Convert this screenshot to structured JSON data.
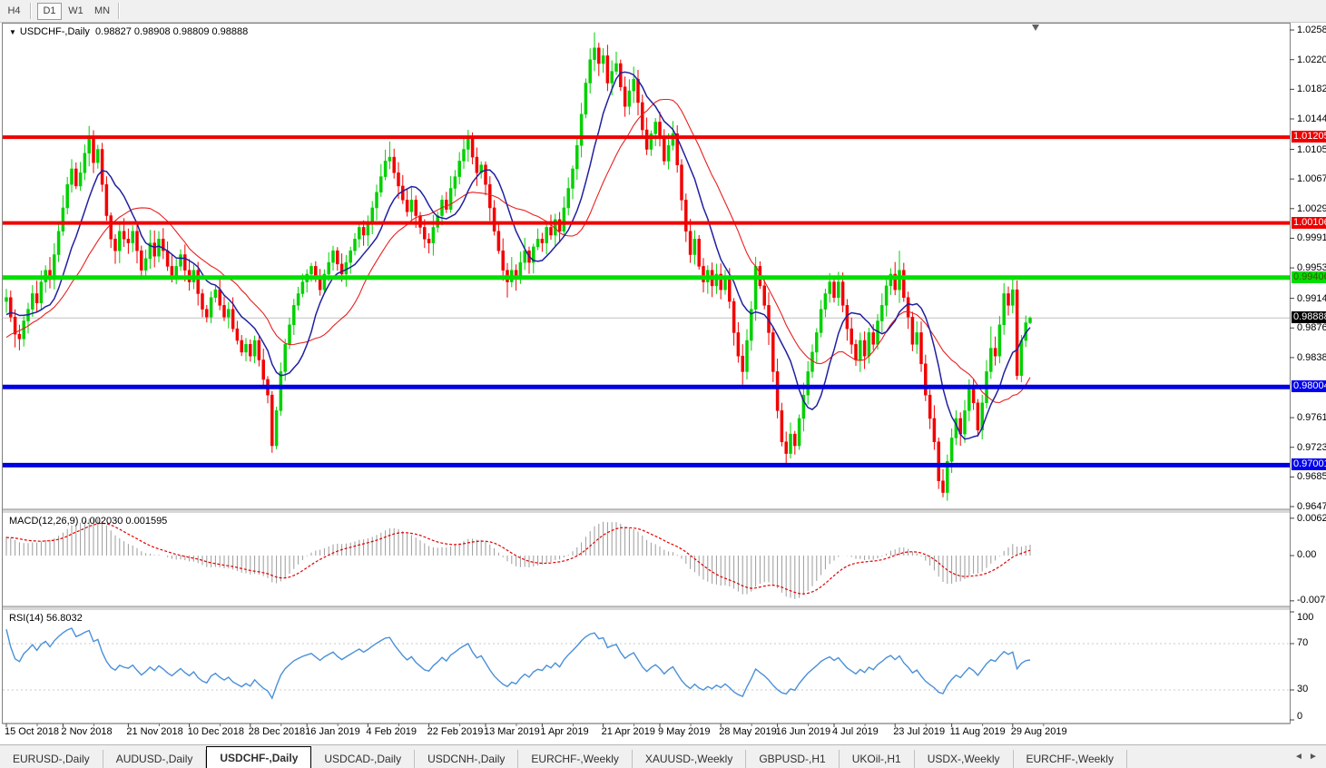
{
  "toolbar": {
    "timeframes": [
      {
        "label": "H4",
        "active": false
      },
      {
        "label": "D1",
        "active": true
      },
      {
        "label": "W1",
        "active": false
      },
      {
        "label": "MN",
        "active": false
      }
    ]
  },
  "chart": {
    "title": "USDCHF-,Daily",
    "ohlc_text": "0.98827 0.98908 0.98809 0.98888",
    "expand_icon": "▼"
  },
  "chart_data": {
    "type": "candlestick",
    "symbol": "USDCHF",
    "timeframe": "Daily",
    "last_candle": {
      "open": 0.98827,
      "high": 0.98908,
      "low": 0.98809,
      "close": 0.98888
    },
    "current_price": 0.98888,
    "price_ylim": [
      0.96447,
      1.02662
    ],
    "price_axis_ticks": [
      "1.02580",
      "1.02200",
      "1.01820",
      "1.01440",
      "1.01050",
      "1.00670",
      "1.00290",
      "0.99910",
      "0.99530",
      "0.99140",
      "0.98760",
      "0.98380",
      "0.97610",
      "0.97230",
      "0.96850",
      "0.96470"
    ],
    "price_badges": [
      {
        "label": "1.01205",
        "price": 1.01205,
        "bg": "#ee0000",
        "fg": "#ffffff"
      },
      {
        "label": "1.00106",
        "price": 1.00106,
        "bg": "#ee0000",
        "fg": "#ffffff"
      },
      {
        "label": "0.99406",
        "price": 0.99406,
        "bg": "#00dd00",
        "fg": "#3c5200"
      },
      {
        "label": "0.98888",
        "price": 0.98888,
        "bg": "#000000",
        "fg": "#ffffff"
      },
      {
        "label": "0.98004",
        "price": 0.98004,
        "bg": "#0000ee",
        "fg": "#ffffff"
      },
      {
        "label": "0.97001",
        "price": 0.97001,
        "bg": "#0000ee",
        "fg": "#ffffff"
      }
    ],
    "h_lines": [
      {
        "price": 1.01205,
        "color": "#ee0000",
        "width": 4
      },
      {
        "price": 1.00106,
        "color": "#ee0000",
        "width": 4
      },
      {
        "price": 0.99406,
        "color": "#00e000",
        "width": 5
      },
      {
        "price": 0.98004,
        "color": "#0000e0",
        "width": 5
      },
      {
        "price": 0.97001,
        "color": "#0000e0",
        "width": 5
      }
    ],
    "x_axis_labels": [
      {
        "i": 0,
        "label": "15 Oct 2018"
      },
      {
        "i": 13,
        "label": "2 Nov 2018"
      },
      {
        "i": 28,
        "label": "21 Nov 2018"
      },
      {
        "i": 42,
        "label": "10 Dec 2018"
      },
      {
        "i": 56,
        "label": "28 Dec 2018"
      },
      {
        "i": 69,
        "label": "16 Jan 2019"
      },
      {
        "i": 83,
        "label": "4 Feb 2019"
      },
      {
        "i": 97,
        "label": "22 Feb 2019"
      },
      {
        "i": 110,
        "label": "13 Mar 2019"
      },
      {
        "i": 123,
        "label": "1 Apr 2019"
      },
      {
        "i": 137,
        "label": "21 Apr 2019"
      },
      {
        "i": 150,
        "label": "9 May 2019"
      },
      {
        "i": 164,
        "label": "28 May 2019"
      },
      {
        "i": 177,
        "label": "16 Jun 2019"
      },
      {
        "i": 190,
        "label": "4 Jul 2019"
      },
      {
        "i": 204,
        "label": "23 Jul 2019"
      },
      {
        "i": 217,
        "label": "11 Aug 2019"
      },
      {
        "i": 231,
        "label": "29 Aug 2019"
      }
    ],
    "colors": {
      "bull": "#00d000",
      "bear": "#f20000",
      "ma_fast": "#2020a0",
      "ma_slow": "#e82020",
      "macd_hist": "#9b9b9b",
      "macd_signal": "#e00000",
      "rsi": "#4a90d9",
      "current_price_line": "#c0c0c0",
      "level_dash": "#c8c8c8"
    },
    "ma_fast_period": 10,
    "ma_slow_period": 21,
    "warmup_closes": [
      0.9745,
      0.9752,
      0.976,
      0.9768,
      0.9775,
      0.977,
      0.9782,
      0.979,
      0.98,
      0.9795,
      0.9808,
      0.9818,
      0.9812,
      0.9825,
      0.9835,
      0.983,
      0.9845,
      0.9855,
      0.985,
      0.9862,
      0.987,
      0.9865,
      0.9878,
      0.9888,
      0.9882,
      0.9895,
      0.99,
      0.9893,
      0.9905,
      0.991
    ],
    "closes": [
      0.9915,
      0.989,
      0.9868,
      0.9862,
      0.9885,
      0.99,
      0.992,
      0.9908,
      0.9935,
      0.995,
      0.9938,
      0.997,
      1.0,
      1.003,
      1.006,
      1.008,
      1.0058,
      1.0075,
      1.01,
      1.012,
      1.0088,
      1.0105,
      1.006,
      1.002,
      0.999,
      0.9975,
      1.0,
      0.999,
      0.9985,
      1.0,
      0.9975,
      0.995,
      0.9965,
      0.9985,
      0.9968,
      0.999,
      0.9975,
      0.9955,
      0.994,
      0.9955,
      0.997,
      0.995,
      0.9935,
      0.995,
      0.992,
      0.99,
      0.989,
      0.9915,
      0.9925,
      0.9905,
      0.989,
      0.99,
      0.9875,
      0.986,
      0.9845,
      0.9855,
      0.984,
      0.986,
      0.9835,
      0.981,
      0.979,
      0.9725,
      0.977,
      0.982,
      0.9855,
      0.988,
      0.9905,
      0.992,
      0.9935,
      0.9945,
      0.9955,
      0.994,
      0.9925,
      0.9945,
      0.996,
      0.9975,
      0.9958,
      0.9945,
      0.996,
      0.9975,
      0.999,
      1.0005,
      0.9995,
      1.001,
      1.003,
      1.005,
      1.007,
      1.009,
      1.0095,
      1.0075,
      1.0058,
      1.004,
      1.0025,
      1.004,
      1.002,
      1.0005,
      0.999,
      0.9985,
      1.0005,
      1.002,
      1.004,
      1.0028,
      1.0055,
      1.007,
      1.009,
      1.0105,
      1.012,
      1.0095,
      1.0075,
      1.0085,
      1.006,
      1.003,
      1.0,
      0.9975,
      0.995,
      0.9935,
      0.995,
      0.994,
      0.996,
      0.9975,
      0.996,
      0.998,
      0.999,
      0.9985,
      1.0005,
      0.9995,
      1.0015,
      1.0,
      1.003,
      1.0055,
      1.008,
      1.011,
      1.015,
      1.019,
      1.022,
      1.0235,
      1.0215,
      1.0225,
      1.019,
      1.0205,
      1.0215,
      1.0185,
      1.016,
      1.018,
      1.0195,
      1.0165,
      1.013,
      1.0105,
      1.0125,
      1.014,
      1.012,
      1.009,
      1.011,
      1.0125,
      1.0085,
      1.004,
      1.0,
      0.997,
      0.999,
      0.9955,
      0.9935,
      0.995,
      0.993,
      0.9945,
      0.9925,
      0.994,
      0.991,
      0.987,
      0.984,
      0.982,
      0.986,
      0.99,
      0.9955,
      0.993,
      0.9905,
      0.987,
      0.982,
      0.977,
      0.973,
      0.9715,
      0.974,
      0.9725,
      0.976,
      0.979,
      0.982,
      0.9845,
      0.987,
      0.99,
      0.992,
      0.9935,
      0.9915,
      0.9935,
      0.9905,
      0.9875,
      0.9855,
      0.9835,
      0.986,
      0.984,
      0.987,
      0.9855,
      0.9885,
      0.9905,
      0.993,
      0.9945,
      0.9925,
      0.995,
      0.9915,
      0.989,
      0.9855,
      0.987,
      0.983,
      0.979,
      0.976,
      0.973,
      0.968,
      0.9665,
      0.9705,
      0.9735,
      0.976,
      0.974,
      0.977,
      0.98,
      0.978,
      0.9745,
      0.978,
      0.982,
      0.985,
      0.984,
      0.988,
      0.992,
      0.9905,
      0.9925,
      0.9815,
      0.986,
      0.98827,
      0.98888
    ],
    "wick_overrides": [
      {
        "i": 19,
        "h": 1.0135
      },
      {
        "i": 61,
        "l": 0.9716
      },
      {
        "i": 88,
        "h": 1.0115
      },
      {
        "i": 106,
        "h": 1.013
      },
      {
        "i": 115,
        "l": 0.9915
      },
      {
        "i": 135,
        "h": 1.0255
      },
      {
        "i": 179,
        "l": 0.97
      },
      {
        "i": 191,
        "h": 0.9948
      },
      {
        "i": 205,
        "h": 0.9975
      },
      {
        "i": 215,
        "l": 0.9659
      },
      {
        "i": 226,
        "h": 0.9878
      },
      {
        "i": 231,
        "h": 0.994
      },
      {
        "i": 235,
        "h": 0.98908,
        "l": 0.98809
      }
    ],
    "indicators": {
      "macd": {
        "label": "MACD(12,26,9)",
        "values_text": "0.002030 0.001595",
        "hist_value": 0.00203,
        "signal_value": 0.001595,
        "axis_ticks": [
          "0.006286",
          "0.00",
          "-0.00762"
        ],
        "ylim": [
          -0.00856,
          0.00703
        ]
      },
      "rsi": {
        "label": "RSI(14)",
        "value_text": "56.8032",
        "value": 56.8032,
        "axis_ticks": [
          "100",
          "70",
          "30",
          "0"
        ],
        "levels": [
          70,
          30
        ],
        "ylim": [
          0,
          100
        ]
      }
    }
  },
  "tabs": [
    {
      "label": "EURUSD-,Daily",
      "active": false
    },
    {
      "label": "AUDUSD-,Daily",
      "active": false
    },
    {
      "label": "USDCHF-,Daily",
      "active": true
    },
    {
      "label": "USDCAD-,Daily",
      "active": false
    },
    {
      "label": "USDCNH-,Daily",
      "active": false
    },
    {
      "label": "EURCHF-,Weekly",
      "active": false
    },
    {
      "label": "XAUUSD-,Weekly",
      "active": false
    },
    {
      "label": "GBPUSD-,H1",
      "active": false
    },
    {
      "label": "UKOil-,H1",
      "active": false
    },
    {
      "label": "USDX-,Weekly",
      "active": false
    },
    {
      "label": "EURCHF-,Weekly",
      "active": false
    }
  ],
  "tab_arrows": {
    "left": "◄",
    "right": "►"
  }
}
